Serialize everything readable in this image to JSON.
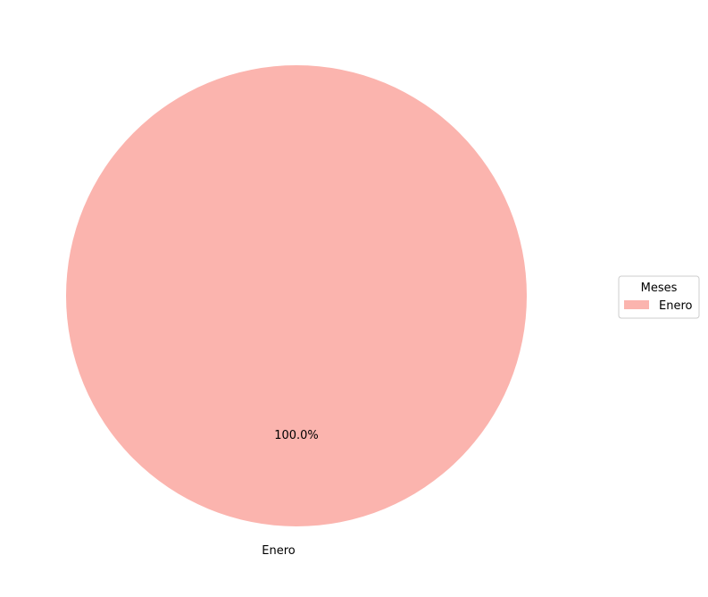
{
  "chart_data": {
    "type": "pie",
    "title": "",
    "slices": [
      {
        "label": "Enero",
        "value": 100,
        "percent_label": "100.0%",
        "color": "#fbb4ae"
      }
    ],
    "legend": {
      "title": "Meses",
      "placement": "right",
      "entries": [
        "Enero"
      ]
    }
  }
}
